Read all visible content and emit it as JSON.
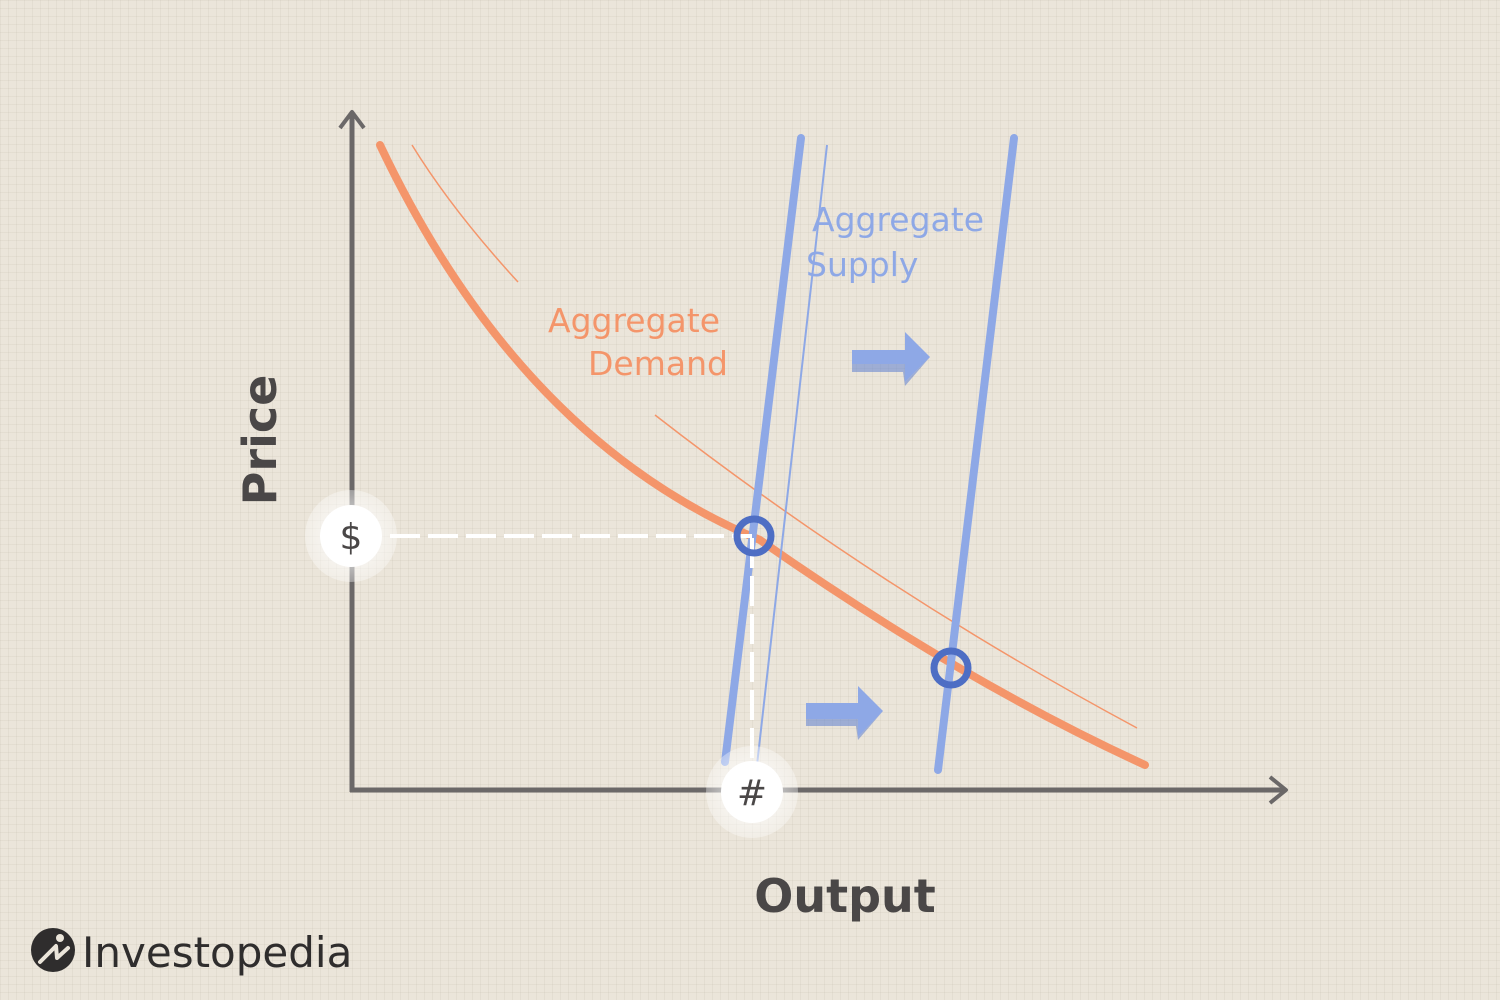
{
  "diagram": {
    "axes": {
      "y_label": "Price",
      "x_label": "Output"
    },
    "curves": {
      "demand_label_line1": "Aggregate",
      "demand_label_line2": "Demand",
      "supply_label_line1": "Aggregate",
      "supply_label_line2": "Supply"
    },
    "markers": {
      "price_symbol": "$",
      "output_symbol": "#"
    },
    "colors": {
      "demand": "#f4956a",
      "supply": "#8ea8e6",
      "equilibrium": "#4e6ec4",
      "axis": "#6b6868",
      "background": "#ebe5da"
    }
  },
  "brand": {
    "name": "Investopedia",
    "icon": "investopedia-logo-icon"
  }
}
